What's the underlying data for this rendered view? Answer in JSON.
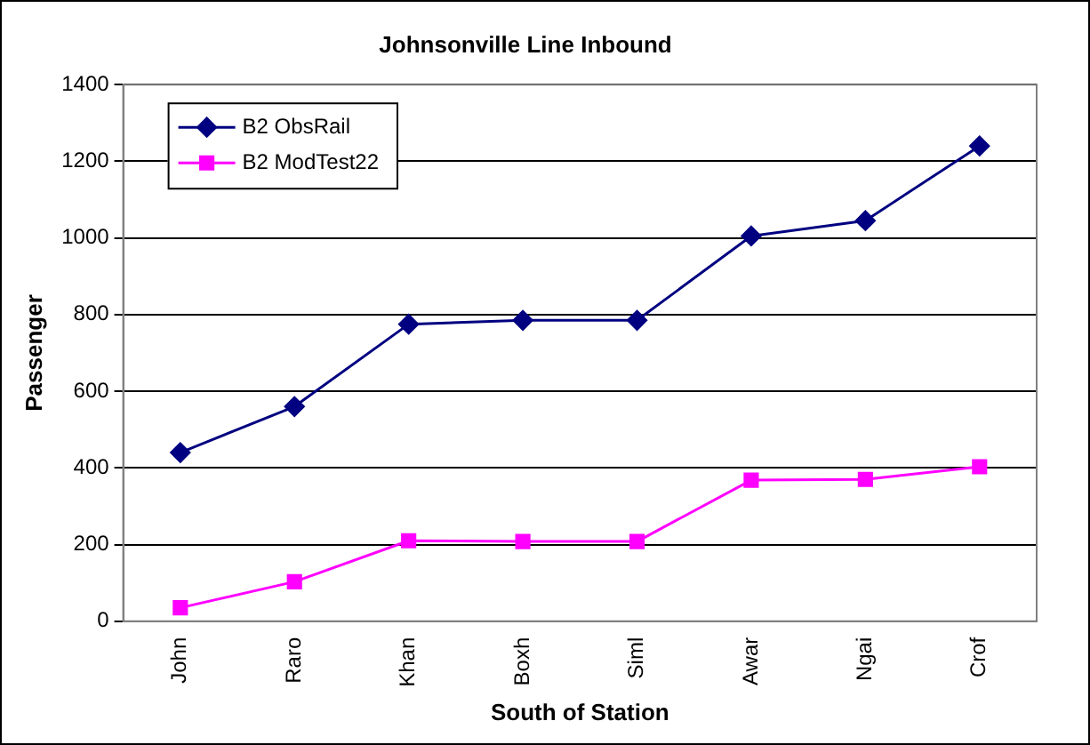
{
  "chart_data": {
    "type": "line",
    "title": "Johnsonville Line Inbound",
    "xlabel": "South of Station",
    "ylabel": "Passenger",
    "categories": [
      "John",
      "Raro",
      "Khan",
      "Boxh",
      "Siml",
      "Awar",
      "Ngai",
      "Crof"
    ],
    "series": [
      {
        "name": "B2 ObsRail",
        "color": "#000080",
        "marker": "diamond",
        "values": [
          440,
          560,
          775,
          785,
          785,
          1005,
          1045,
          1240
        ]
      },
      {
        "name": "B2 ModTest22",
        "color": "#ff00ff",
        "marker": "square",
        "values": [
          35,
          103,
          210,
          208,
          208,
          368,
          370,
          403
        ]
      }
    ],
    "ylim": [
      0,
      1400
    ],
    "yticks": [
      0,
      200,
      400,
      600,
      800,
      1000,
      1200,
      1400
    ],
    "grid": "y",
    "legend": "top left",
    "line_style": "solid"
  }
}
